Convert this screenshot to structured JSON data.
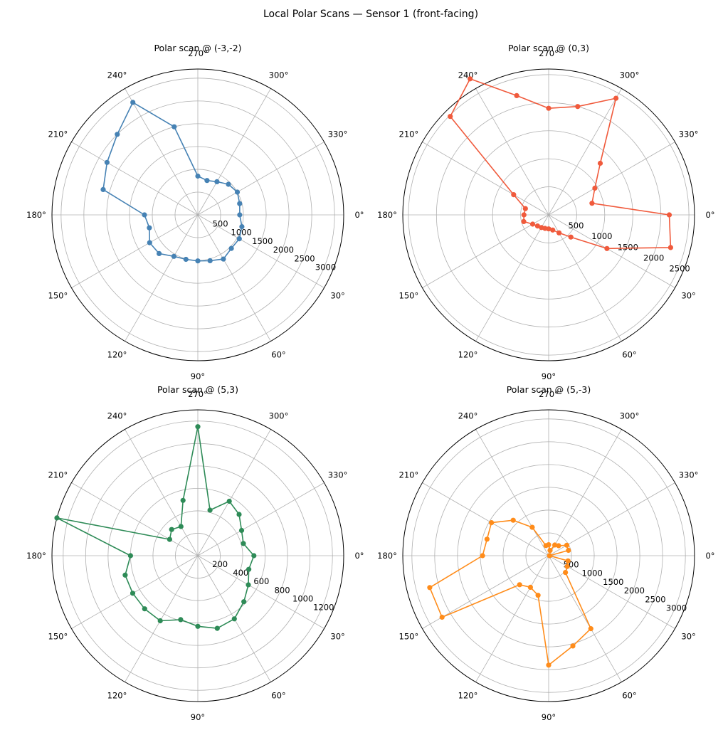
{
  "figure": {
    "suptitle": "Local Polar Scans — Sensor 1 (front-facing)"
  },
  "chart_data": [
    {
      "type": "line",
      "projection": "polar",
      "title": "Polar scan @ (-3,-2)",
      "theta_direction": "clockwise",
      "theta_zero": "east",
      "angle_ticks_deg": [
        0,
        30,
        60,
        90,
        120,
        150,
        180,
        210,
        240,
        270,
        300,
        330
      ],
      "angle_tick_labels": [
        "0°",
        "30°",
        "60°",
        "90°",
        "120°",
        "150°",
        "180°",
        "210°",
        "240°",
        "270°",
        "300°",
        "330°"
      ],
      "rlim": [
        0,
        3200
      ],
      "r_ticks": [
        500,
        1000,
        1500,
        2000,
        2500,
        3000
      ],
      "r_tick_labels": [
        "500",
        "1000",
        "1500",
        "2000",
        "2500",
        "3000"
      ],
      "grid": true,
      "color": "#4682b4",
      "marker": "circle",
      "closed": true,
      "series": [
        {
          "theta_deg": [
            0,
            15,
            30,
            45,
            60,
            75,
            90,
            105,
            120,
            135,
            150,
            165,
            180,
            195,
            210,
            225,
            240,
            255,
            270,
            285,
            300,
            315,
            330,
            345
          ],
          "r": [
            920,
            1000,
            1050,
            1040,
            1120,
            1040,
            1010,
            1010,
            1050,
            1200,
            1220,
            1100,
            1170,
            2150,
            2300,
            2500,
            2850,
            2000,
            850,
            780,
            840,
            950,
            1000,
            950
          ]
        }
      ]
    },
    {
      "type": "line",
      "projection": "polar",
      "title": "Polar scan @ (0,3)",
      "theta_direction": "clockwise",
      "theta_zero": "east",
      "angle_ticks_deg": [
        0,
        30,
        60,
        90,
        120,
        150,
        180,
        210,
        240,
        270,
        300,
        330
      ],
      "angle_tick_labels": [
        "0°",
        "30°",
        "60°",
        "90°",
        "120°",
        "150°",
        "180°",
        "210°",
        "240°",
        "270°",
        "300°",
        "330°"
      ],
      "rlim": [
        0,
        2600
      ],
      "r_ticks": [
        500,
        1000,
        1500,
        2000,
        2500
      ],
      "r_tick_labels": [
        "500",
        "1000",
        "1500",
        "2000",
        "2500"
      ],
      "grid": true,
      "color": "#f05a3c",
      "marker": "circle",
      "closed": true,
      "series": [
        {
          "theta_deg": [
            0,
            15,
            30,
            45,
            60,
            75,
            90,
            105,
            120,
            135,
            150,
            165,
            180,
            195,
            210,
            225,
            240,
            255,
            270,
            285,
            300,
            315,
            330,
            345
          ],
          "r": [
            2150,
            2250,
            1200,
            560,
            370,
            280,
            250,
            250,
            260,
            280,
            330,
            460,
            440,
            430,
            720,
            2480,
            2800,
            2200,
            1900,
            2000,
            2400,
            1300,
            950,
            800
          ]
        }
      ]
    },
    {
      "type": "line",
      "projection": "polar",
      "title": "Polar scan @ (5,3)",
      "theta_direction": "clockwise",
      "theta_zero": "east",
      "angle_ticks_deg": [
        0,
        30,
        60,
        90,
        120,
        150,
        180,
        210,
        240,
        270,
        300,
        330
      ],
      "angle_tick_labels": [
        "0°",
        "30°",
        "60°",
        "90°",
        "120°",
        "150°",
        "180°",
        "210°",
        "240°",
        "270°",
        "300°",
        "330°"
      ],
      "rlim": [
        0,
        1300
      ],
      "r_ticks": [
        200,
        400,
        600,
        800,
        1000,
        1200
      ],
      "r_tick_labels": [
        "200",
        "400",
        "600",
        "800",
        "1000",
        "1200"
      ],
      "grid": true,
      "color": "#2e8b57",
      "marker": "circle",
      "closed": true,
      "series": [
        {
          "theta_deg": [
            0,
            15,
            30,
            45,
            60,
            75,
            90,
            105,
            120,
            135,
            150,
            165,
            180,
            195,
            210,
            225,
            240,
            255,
            270,
            285,
            300,
            315,
            330,
            345
          ],
          "r": [
            500,
            470,
            520,
            580,
            650,
            670,
            630,
            590,
            670,
            670,
            670,
            670,
            600,
            1300,
            290,
            330,
            300,
            510,
            1150,
            420,
            560,
            520,
            450,
            420
          ]
        }
      ]
    },
    {
      "type": "line",
      "projection": "polar",
      "title": "Polar scan @ (5,-3)",
      "theta_direction": "clockwise",
      "theta_zero": "east",
      "angle_ticks_deg": [
        0,
        30,
        60,
        90,
        120,
        150,
        180,
        210,
        240,
        270,
        300,
        330
      ],
      "angle_tick_labels": [
        "0°",
        "30°",
        "60°",
        "90°",
        "120°",
        "150°",
        "180°",
        "210°",
        "240°",
        "270°",
        "300°",
        "330°"
      ],
      "rlim": [
        0,
        3200
      ],
      "r_ticks": [
        500,
        1000,
        1500,
        2000,
        2500,
        3000
      ],
      "r_tick_labels": [
        "500",
        "1000",
        "1500",
        "2000",
        "2500",
        "3000"
      ],
      "grid": true,
      "color": "#ff8c1a",
      "marker": "circle",
      "closed": true,
      "series": [
        {
          "theta_deg": [
            0,
            15,
            30,
            45,
            60,
            75,
            90,
            105,
            120,
            135,
            150,
            165,
            180,
            195,
            210,
            225,
            240,
            255,
            270,
            285,
            300,
            315,
            330,
            345
          ],
          "r": [
            20,
            440,
            470,
            520,
            1850,
            2050,
            2400,
            900,
            800,
            900,
            2700,
            2700,
            1450,
            1400,
            1450,
            1100,
            720,
            230,
            240,
            120,
            270,
            310,
            460,
            450
          ]
        }
      ]
    }
  ]
}
